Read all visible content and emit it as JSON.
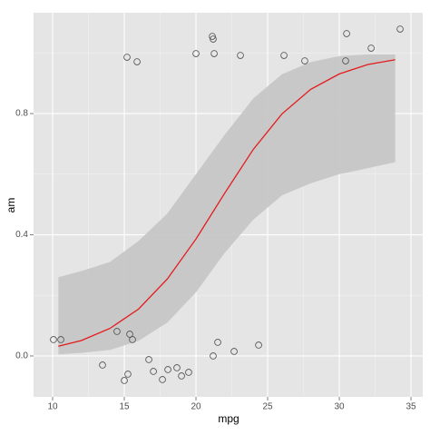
{
  "chart_data": {
    "type": "scatter",
    "x_label": "mpg",
    "y_label": "am",
    "x": [
      10.06,
      10.57,
      14.49,
      15.57,
      15.38,
      13.48,
      15.0,
      15.25,
      16.71,
      17.03,
      17.66,
      18.04,
      18.67,
      18.99,
      19.49,
      21.2,
      21.52,
      22.66,
      24.37,
      15.19,
      15.89,
      20.0,
      21.14,
      21.2,
      21.27,
      23.1,
      26.14,
      27.59,
      30.44,
      30.51,
      32.22,
      34.24
    ],
    "values": [
      0.054,
      0.054,
      0.081,
      0.054,
      0.072,
      -0.03,
      -0.081,
      -0.06,
      -0.012,
      -0.051,
      -0.078,
      -0.045,
      -0.039,
      -0.066,
      -0.054,
      0.0,
      0.045,
      0.015,
      0.036,
      0.986,
      0.971,
      0.998,
      1.055,
      1.046,
      0.998,
      0.992,
      0.992,
      0.974,
      0.974,
      1.064,
      1.016,
      1.079
    ],
    "point_color": "#4d4d4d",
    "fit": {
      "color": "#e41a1c",
      "band_color": "#c4c4c4",
      "x": [
        10.4,
        12,
        14,
        16,
        18,
        20,
        22,
        24,
        26,
        28,
        30,
        32,
        33.9
      ],
      "y": [
        0.032,
        0.051,
        0.091,
        0.155,
        0.254,
        0.386,
        0.537,
        0.682,
        0.799,
        0.88,
        0.931,
        0.962,
        0.978
      ],
      "lower": [
        0.005,
        0.01,
        0.02,
        0.05,
        0.11,
        0.21,
        0.34,
        0.45,
        0.53,
        0.57,
        0.6,
        0.62,
        0.64
      ],
      "upper": [
        0.26,
        0.28,
        0.31,
        0.38,
        0.47,
        0.6,
        0.73,
        0.85,
        0.93,
        0.97,
        0.99,
        0.995,
        0.995
      ]
    },
    "xlim": [
      8.67,
      35.82
    ],
    "xticks": [
      10,
      15,
      20,
      25,
      30,
      35
    ],
    "ylim": [
      -0.135,
      1.133
    ],
    "yticks": [
      {
        "value": 0,
        "label": "0.0"
      },
      0.4,
      0.8
    ],
    "grid": true
  }
}
